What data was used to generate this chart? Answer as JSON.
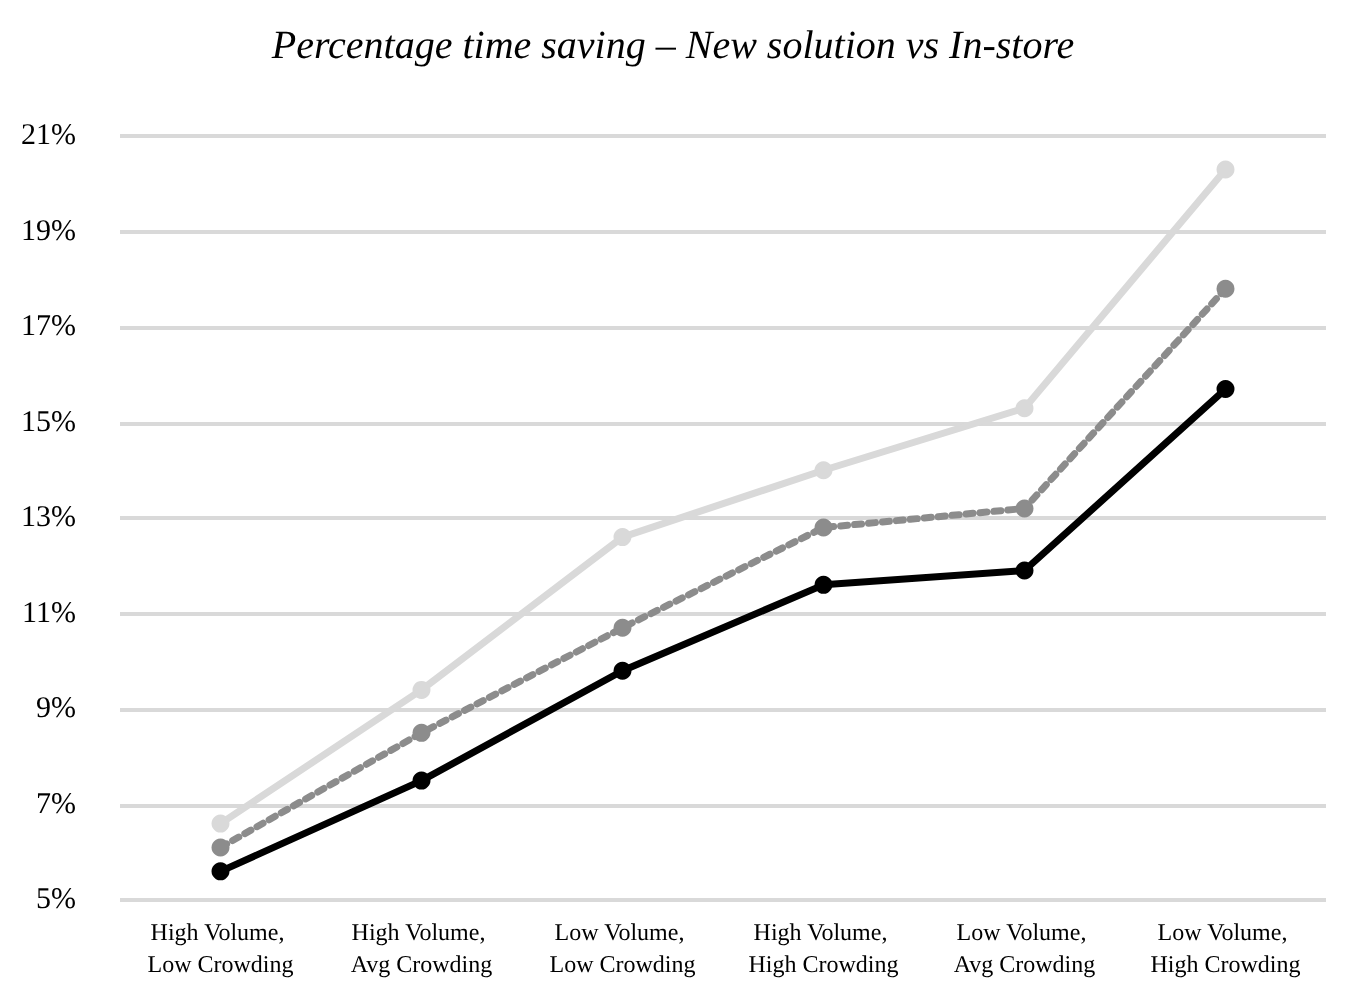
{
  "chart_data": {
    "type": "line",
    "title": "Percentage time saving – New solution vs In-store",
    "categories": [
      "High Volume, Low Crowding",
      "High Volume, Avg Crowding",
      "Low Volume, Low Crowding",
      "High Volume, High Crowding",
      "Low Volume, Avg Crowding",
      "Low Volume, High Crowding"
    ],
    "series": [
      {
        "color": "#d9d9d9",
        "line_style": "solid",
        "values": [
          6.6,
          9.4,
          12.6,
          14.0,
          15.3,
          20.3
        ]
      },
      {
        "color": "#8c8c8c",
        "line_style": "dotted",
        "values": [
          6.1,
          8.5,
          10.7,
          12.8,
          13.2,
          17.8
        ]
      },
      {
        "color": "#000000",
        "line_style": "solid",
        "values": [
          5.6,
          7.5,
          9.8,
          11.6,
          11.9,
          15.7
        ]
      }
    ],
    "ylim": [
      5,
      21
    ],
    "yticks": [
      {
        "value": 5,
        "label": "5%"
      },
      {
        "value": 7,
        "label": "7%"
      },
      {
        "value": 9,
        "label": "9%"
      },
      {
        "value": 11,
        "label": "11%"
      },
      {
        "value": 13,
        "label": "13%"
      },
      {
        "value": 15,
        "label": "15%"
      },
      {
        "value": 17,
        "label": "17%"
      },
      {
        "value": 19,
        "label": "19%"
      },
      {
        "value": 21,
        "label": "21%"
      }
    ],
    "grid": "y",
    "marker": "circle"
  }
}
